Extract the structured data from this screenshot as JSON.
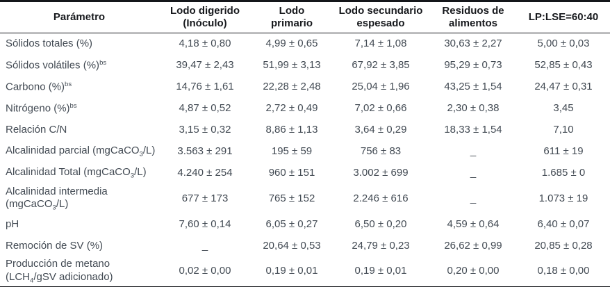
{
  "colors": {
    "background": "#ffffff",
    "body_text": "#424a53",
    "header_text": "#17191d",
    "rule": "#14161a"
  },
  "table": {
    "columns": [
      {
        "name": "parametro",
        "segments": [
          {
            "t": "Parámetro"
          }
        ]
      },
      {
        "name": "lodo-digerido-inoculo",
        "segments": [
          {
            "t": "Lodo digerido"
          },
          {
            "br": true
          },
          {
            "t": "(Inóculo)"
          }
        ]
      },
      {
        "name": "lodo-primario",
        "segments": [
          {
            "t": "Lodo"
          },
          {
            "br": true
          },
          {
            "t": "primario"
          }
        ]
      },
      {
        "name": "lodo-secundario-espesado",
        "segments": [
          {
            "t": "Lodo secundario"
          },
          {
            "br": true
          },
          {
            "t": "espesado"
          }
        ]
      },
      {
        "name": "residuos-de-alimentos",
        "segments": [
          {
            "t": "Residuos de"
          },
          {
            "br": true
          },
          {
            "t": "alimentos"
          }
        ]
      },
      {
        "name": "lp-lse-60-40",
        "segments": [
          {
            "t": "LP:LSE=60:40"
          }
        ]
      }
    ],
    "rows": [
      {
        "param": [
          {
            "t": "Sólidos totales (%)"
          }
        ],
        "values": [
          "4,18 ± 0,80",
          "4,99 ± 0,65",
          "7,14 ± 1,08",
          "30,63 ± 2,27",
          "5,00 ± 0,03"
        ]
      },
      {
        "param": [
          {
            "t": "Sólidos volátiles (%)"
          },
          {
            "t": "bs",
            "s": "sup"
          }
        ],
        "values": [
          "39,47 ± 2,43",
          "51,99 ± 3,13",
          "67,92 ± 3,85",
          "95,29 ± 0,73",
          "52,85 ± 0,43"
        ]
      },
      {
        "param": [
          {
            "t": "Carbono (%)"
          },
          {
            "t": "bs",
            "s": "sup"
          }
        ],
        "values": [
          "14,76 ± 1,61",
          "22,28 ± 2,48",
          "25,04 ± 1,96",
          "43,25 ± 1,54",
          "24,47 ± 0,31"
        ]
      },
      {
        "param": [
          {
            "t": "Nitrógeno (%)"
          },
          {
            "t": "bs",
            "s": "sup"
          }
        ],
        "values": [
          "4,87 ± 0,52",
          "2,72 ± 0,49",
          "7,02 ± 0,66",
          "2,30 ± 0,38",
          "3,45"
        ]
      },
      {
        "param": [
          {
            "t": "Relación C/N"
          }
        ],
        "values": [
          "3,15 ± 0,32",
          "8,86 ± 1,13",
          "3,64 ± 0,29",
          "18,33 ± 1,54",
          "7,10"
        ]
      },
      {
        "param": [
          {
            "t": "Alcalinidad parcial (mgCaCO"
          },
          {
            "t": "3",
            "s": "sub"
          },
          {
            "t": "/L)"
          }
        ],
        "values": [
          "3.563 ± 291",
          "195 ± 59",
          "756 ± 83",
          "_",
          "611 ± 19"
        ]
      },
      {
        "param": [
          {
            "t": "Alcalinidad Total  (mgCaCO"
          },
          {
            "t": "3",
            "s": "sub"
          },
          {
            "t": "/L)"
          }
        ],
        "values": [
          "4.240 ± 254",
          "960 ± 151",
          "3.002 ± 699",
          "_",
          "1.685 ± 0"
        ]
      },
      {
        "param": [
          {
            "t": "Alcalinidad intermedia"
          },
          {
            "br": true
          },
          {
            "t": "(mgCaCO"
          },
          {
            "t": "3",
            "s": "sub"
          },
          {
            "t": "/L)"
          }
        ],
        "values": [
          "677 ± 173",
          "765 ± 152",
          "2.246 ± 616",
          "_",
          "1.073 ± 19"
        ]
      },
      {
        "param": [
          {
            "t": "pH"
          }
        ],
        "values": [
          "7,60 ± 0,14",
          "6,05 ± 0,27",
          "6,50 ± 0,20",
          "4,59 ± 0,64",
          "6,40 ± 0,07"
        ]
      },
      {
        "param": [
          {
            "t": "Remoción de SV (%)"
          }
        ],
        "values": [
          "_",
          "20,64 ± 0,53",
          "24,79 ± 0,23",
          "26,62 ± 0,99",
          "20,85 ± 0,28"
        ]
      },
      {
        "param": [
          {
            "t": "Producción de metano"
          },
          {
            "br": true
          },
          {
            "t": "(LCH"
          },
          {
            "t": "4",
            "s": "sub"
          },
          {
            "t": "/gSV adicionado)"
          }
        ],
        "values": [
          "0,02 ± 0,00",
          "0,19 ± 0,01",
          "0,19 ± 0,01",
          "0,20 ± 0,00",
          "0,18 ± 0,00"
        ]
      }
    ]
  }
}
